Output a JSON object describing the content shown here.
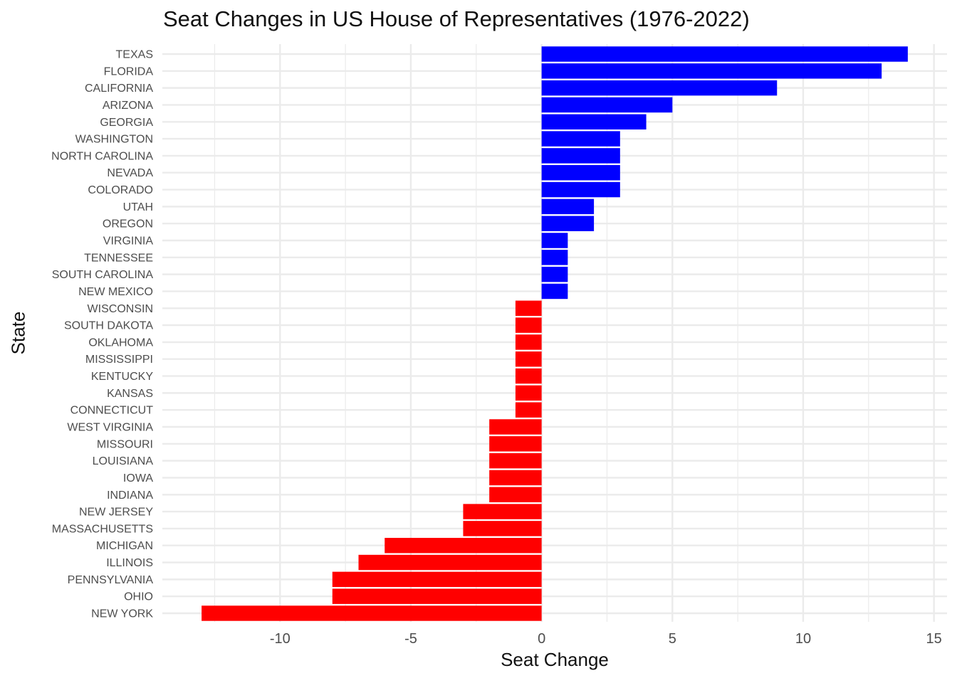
{
  "chart_data": {
    "type": "bar",
    "orientation": "horizontal",
    "title": "Seat Changes in US House of Representatives (1976-2022)",
    "xlabel": "Seat Change",
    "ylabel": "State",
    "xlim": [
      -14.5,
      15.5
    ],
    "xticks": [
      -10,
      -5,
      0,
      5,
      10,
      15
    ],
    "grid": true,
    "legend": "none",
    "colors": {
      "positive": "#0000ff",
      "negative": "#ff0000",
      "grid": "#ebebeb",
      "tick_text": "#4d4d4d"
    },
    "categories": [
      "TEXAS",
      "FLORIDA",
      "CALIFORNIA",
      "ARIZONA",
      "GEORGIA",
      "WASHINGTON",
      "NORTH CAROLINA",
      "NEVADA",
      "COLORADO",
      "UTAH",
      "OREGON",
      "VIRGINIA",
      "TENNESSEE",
      "SOUTH CAROLINA",
      "NEW MEXICO",
      "WISCONSIN",
      "SOUTH DAKOTA",
      "OKLAHOMA",
      "MISSISSIPPI",
      "KENTUCKY",
      "KANSAS",
      "CONNECTICUT",
      "WEST VIRGINIA",
      "MISSOURI",
      "LOUISIANA",
      "IOWA",
      "INDIANA",
      "NEW JERSEY",
      "MASSACHUSETTS",
      "MICHIGAN",
      "ILLINOIS",
      "PENNSYLVANIA",
      "OHIO",
      "NEW YORK"
    ],
    "values": [
      14,
      13,
      9,
      5,
      4,
      3,
      3,
      3,
      3,
      2,
      2,
      1,
      1,
      1,
      1,
      -1,
      -1,
      -1,
      -1,
      -1,
      -1,
      -1,
      -2,
      -2,
      -2,
      -2,
      -2,
      -3,
      -3,
      -6,
      -7,
      -8,
      -8,
      -13
    ]
  }
}
